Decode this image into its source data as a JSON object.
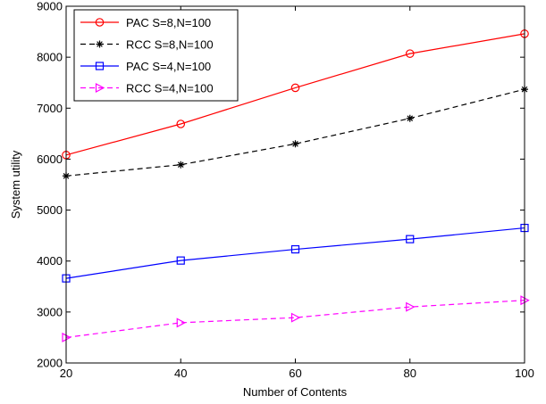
{
  "chart_data": {
    "type": "line",
    "xlabel": "Number of Contents",
    "ylabel": "System utility",
    "xlim": [
      20,
      100
    ],
    "ylim": [
      2000,
      9000
    ],
    "xticks": [
      20,
      40,
      60,
      80,
      100
    ],
    "yticks": [
      2000,
      3000,
      4000,
      5000,
      6000,
      7000,
      8000,
      9000
    ],
    "x": [
      20,
      40,
      60,
      80,
      100
    ],
    "grid": false,
    "legend_position": "top-left",
    "series": [
      {
        "name": "PAC S=8,N=100",
        "values": [
          6080,
          6690,
          7400,
          8070,
          8460
        ],
        "color": "#ff0000",
        "dash": "solid",
        "marker": "circle"
      },
      {
        "name": "RCC S=8,N=100",
        "values": [
          5670,
          5890,
          6300,
          6800,
          7370
        ],
        "color": "#000000",
        "dash": "dashed",
        "marker": "star"
      },
      {
        "name": "PAC S=4,N=100",
        "values": [
          3660,
          4010,
          4230,
          4430,
          4650
        ],
        "color": "#0000ff",
        "dash": "solid",
        "marker": "square"
      },
      {
        "name": "RCC S=4,N=100",
        "values": [
          2500,
          2790,
          2890,
          3100,
          3230
        ],
        "color": "#ff00ff",
        "dash": "dashed",
        "marker": "triangle-right"
      }
    ]
  }
}
